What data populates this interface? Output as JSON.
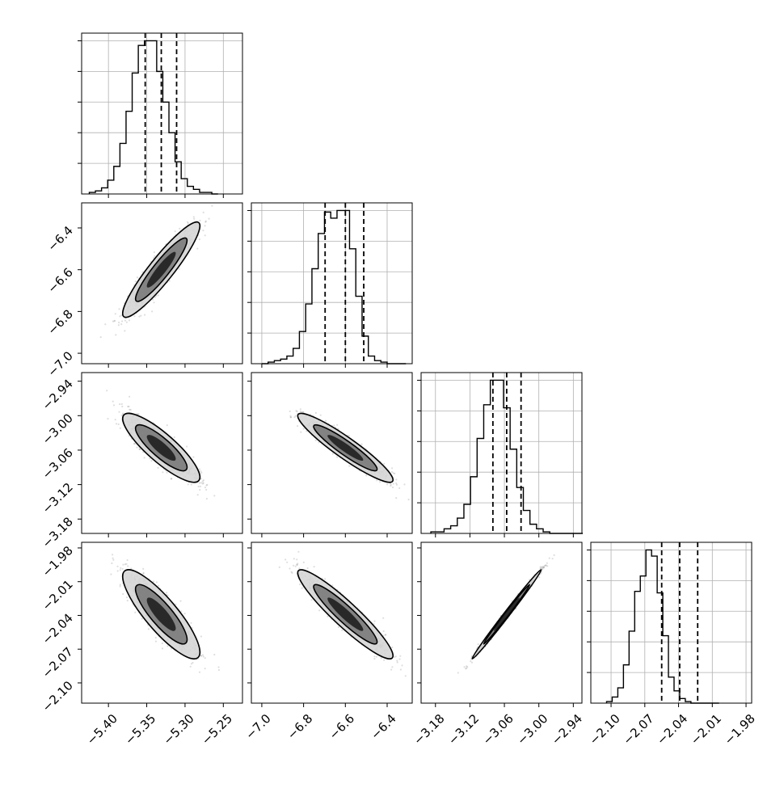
{
  "chart_data": {
    "type": "corner",
    "params": [
      {
        "range": [
          -5.435,
          -5.225
        ],
        "ticks": [
          -5.4,
          -5.35,
          -5.3,
          -5.25
        ],
        "tick_labels": [
          "−5.40",
          "−5.35",
          "−5.30",
          "−5.25"
        ]
      },
      {
        "range": [
          -7.05,
          -6.28
        ],
        "ticks": [
          -7.0,
          -6.8,
          -6.6,
          -6.4
        ],
        "tick_labels": [
          "−7.0",
          "−6.8",
          "−6.6",
          "−6.4"
        ]
      },
      {
        "range": [
          -3.205,
          -2.925
        ],
        "ticks": [
          -3.18,
          -3.12,
          -3.06,
          -3.0,
          -2.94
        ],
        "tick_labels": [
          "−3.18",
          "−3.12",
          "−3.06",
          "−3.00",
          "−2.94"
        ]
      },
      {
        "range": [
          -2.118,
          -1.975
        ],
        "ticks": [
          -2.1,
          -2.07,
          -2.04,
          -2.01,
          -1.98
        ],
        "tick_labels": [
          "−2.10",
          "−2.07",
          "−2.04",
          "−2.01",
          "−1.98"
        ]
      }
    ],
    "histograms": [
      {
        "param": 0,
        "quantiles": [
          -5.352,
          -5.331,
          -5.311
        ],
        "bin_start": -5.425,
        "bin_width": 0.008,
        "counts": [
          1,
          2,
          4,
          9,
          18,
          33,
          54,
          79,
          97,
          100,
          100,
          80,
          60,
          40,
          21,
          10,
          5,
          3,
          1,
          1,
          0
        ]
      },
      {
        "param": 1,
        "quantiles": [
          -6.697,
          -6.6,
          -6.512
        ],
        "bin_start": -7.0,
        "bin_width": 0.03,
        "counts": [
          0,
          1,
          2,
          3,
          5,
          10,
          21,
          39,
          62,
          85,
          99,
          95,
          100,
          100,
          75,
          44,
          18,
          5,
          2,
          1,
          0,
          0,
          0
        ]
      },
      {
        "param": 2,
        "quantiles": [
          -3.08,
          -3.056,
          -3.031
        ],
        "bin_start": -3.188,
        "bin_width": 0.0115,
        "counts": [
          1,
          1,
          3,
          5,
          10,
          19,
          37,
          62,
          84,
          100,
          100,
          82,
          55,
          30,
          15,
          6,
          3,
          1,
          0,
          0,
          0,
          0,
          0
        ]
      },
      {
        "param": 3,
        "quantiles": [
          -2.055,
          -2.039,
          -2.023
        ],
        "bin_start": -2.104,
        "bin_width": 0.005,
        "counts": [
          1,
          4,
          10,
          25,
          47,
          73,
          83,
          100,
          96,
          72,
          44,
          17,
          8,
          3,
          1,
          0,
          0,
          0,
          0,
          0
        ]
      }
    ],
    "pairs": [
      {
        "x": 0,
        "y": 1,
        "center": [
          -5.331,
          -6.6
        ],
        "sd": [
          0.021,
          0.095
        ],
        "corr": 0.92
      },
      {
        "x": 0,
        "y": 2,
        "center": [
          -5.331,
          -3.056
        ],
        "sd": [
          0.021,
          0.025
        ],
        "corr": -0.85
      },
      {
        "x": 1,
        "y": 2,
        "center": [
          -6.6,
          -3.056
        ],
        "sd": [
          0.095,
          0.025
        ],
        "corr": -0.93
      },
      {
        "x": 0,
        "y": 3,
        "center": [
          -5.331,
          -2.039
        ],
        "sd": [
          0.021,
          0.0165
        ],
        "corr": -0.85
      },
      {
        "x": 1,
        "y": 3,
        "center": [
          -6.6,
          -2.039
        ],
        "sd": [
          0.095,
          0.0165
        ],
        "corr": -0.93
      },
      {
        "x": 2,
        "y": 3,
        "center": [
          -3.056,
          -2.039
        ],
        "sd": [
          0.025,
          0.0165
        ],
        "corr": 0.995
      }
    ],
    "grid": true,
    "colors": {
      "line": "#000000",
      "grid": "#b0b0b0",
      "points": "#000000",
      "fill_dark": "#1a1a1a",
      "fill_mid": "#7a7a7a",
      "fill_light": "#d6d6d6"
    }
  }
}
